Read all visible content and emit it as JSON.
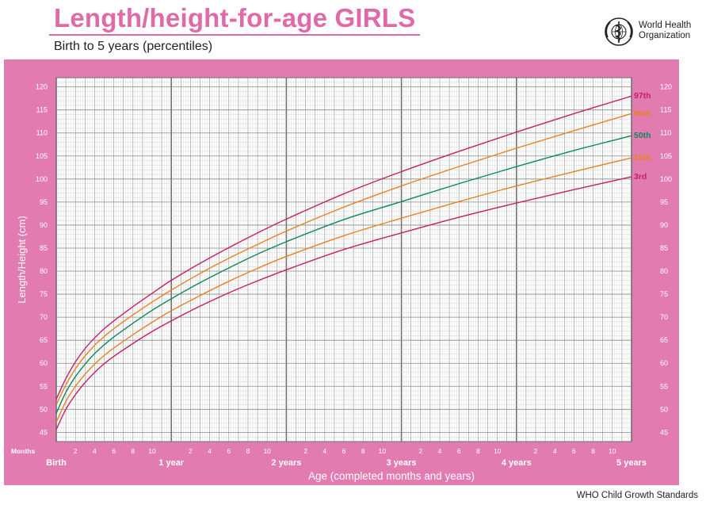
{
  "header": {
    "title": "Length/height-for-age GIRLS",
    "subtitle": "Birth to 5 years (percentiles)"
  },
  "organization": {
    "name": "World Health\nOrganization",
    "icon": "who-emblem-icon"
  },
  "footer": "WHO Child Growth Standards",
  "colors": {
    "brand": "#e06aa8",
    "panel": "#e27bb0",
    "grid": "#808080",
    "p97": "#c81f66",
    "p85": "#e8821e",
    "p50": "#0a8a5a",
    "p15": "#e8821e",
    "p3": "#c81f66"
  },
  "chart_data": {
    "type": "line",
    "title": "Length/height-for-age GIRLS",
    "subtitle": "Birth to 5 years (percentiles)",
    "xlabel": "Age (completed months and years)",
    "ylabel": "Length/Height (cm)",
    "x_unit": "months",
    "xlim": [
      0,
      60
    ],
    "ylim": [
      43,
      122
    ],
    "y_ticks": [
      45,
      50,
      55,
      60,
      65,
      70,
      75,
      80,
      85,
      90,
      95,
      100,
      105,
      110,
      115,
      120
    ],
    "months_label": "Months",
    "month_ticks": [
      "2",
      "4",
      "6",
      "8",
      "10"
    ],
    "year_labels": [
      "Birth",
      "1 year",
      "2 years",
      "3 years",
      "4 years",
      "5 years"
    ],
    "grid": true,
    "x": [
      0,
      1,
      2,
      3,
      4,
      5,
      6,
      8,
      10,
      12,
      15,
      18,
      21,
      24,
      30,
      36,
      42,
      48,
      54,
      60
    ],
    "series": [
      {
        "name": "97th",
        "values": [
          52.2,
          56.7,
          60.3,
          63.2,
          65.5,
          67.5,
          69.2,
          72.3,
          75.2,
          78.0,
          81.7,
          85.1,
          88.3,
          91.3,
          96.8,
          101.6,
          106.0,
          110.2,
          114.2,
          118.0
        ]
      },
      {
        "name": "85th",
        "values": [
          51.0,
          55.3,
          58.8,
          61.6,
          63.9,
          65.8,
          67.5,
          70.5,
          73.3,
          75.9,
          79.5,
          82.8,
          85.8,
          88.7,
          93.9,
          98.5,
          102.7,
          106.7,
          110.5,
          114.2
        ]
      },
      {
        "name": "50th",
        "values": [
          49.1,
          53.7,
          57.1,
          59.8,
          62.1,
          64.0,
          65.7,
          68.7,
          71.5,
          74.0,
          77.5,
          80.7,
          83.7,
          86.4,
          91.2,
          95.1,
          99.0,
          102.7,
          106.2,
          109.4
        ]
      },
      {
        "name": "15th",
        "values": [
          47.2,
          51.7,
          55.0,
          57.6,
          59.8,
          61.7,
          63.3,
          66.2,
          68.9,
          71.4,
          74.7,
          77.8,
          80.6,
          83.2,
          87.7,
          91.5,
          95.1,
          98.5,
          101.6,
          104.6
        ]
      },
      {
        "name": "3rd",
        "values": [
          45.6,
          50.0,
          53.2,
          55.8,
          58.0,
          59.9,
          61.5,
          64.3,
          66.9,
          69.2,
          72.4,
          75.3,
          77.9,
          80.3,
          84.7,
          88.3,
          91.7,
          94.8,
          97.7,
          100.5
        ]
      }
    ]
  }
}
